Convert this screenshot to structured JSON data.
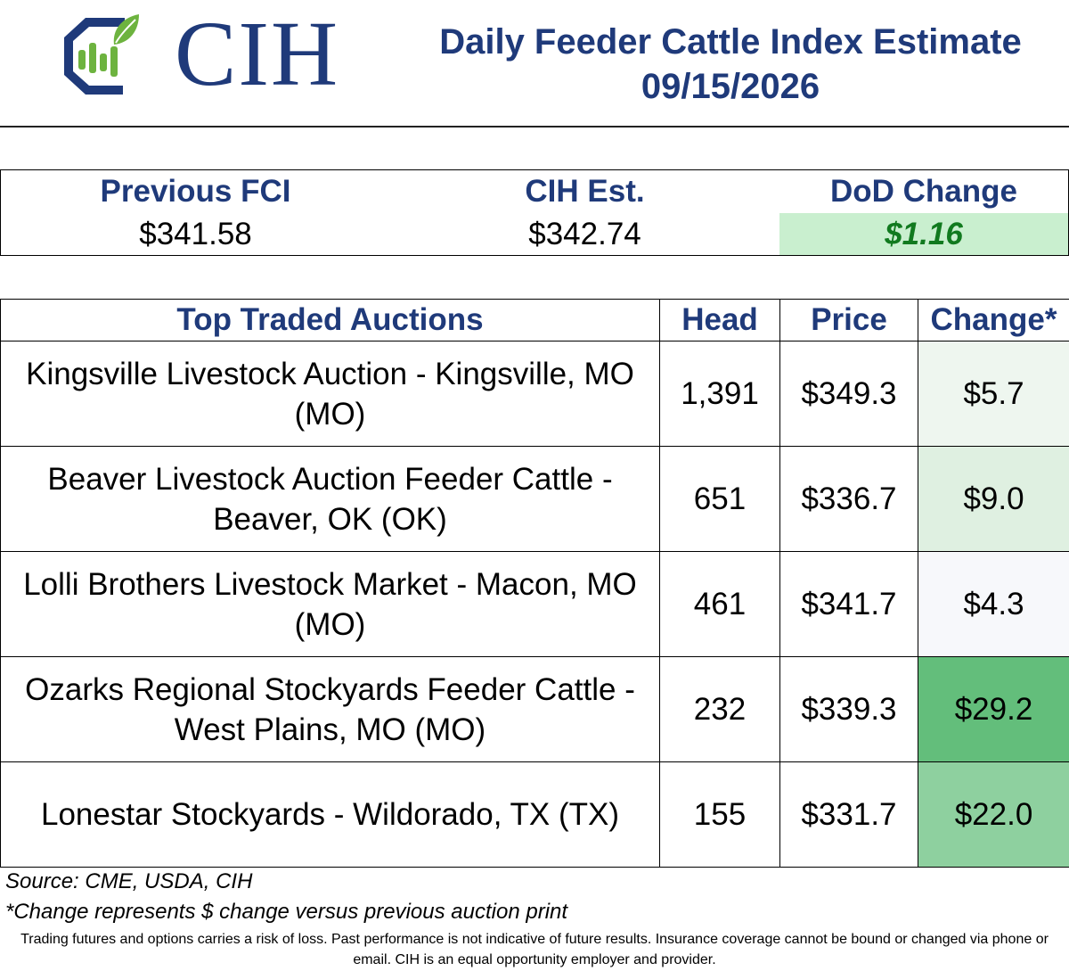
{
  "brand": {
    "logo_text": "CIH",
    "colors": {
      "navy": "#1f3a7a",
      "leaf_green": "#6db33f",
      "dod_bg": "#c9efcf",
      "dod_text": "#117a1f"
    }
  },
  "header": {
    "title": "Daily Feeder Cattle Index Estimate",
    "date": "09/15/2026"
  },
  "summary": {
    "previous_fci_label": "Previous FCI",
    "previous_fci_value": "$341.58",
    "cih_est_label": "CIH Est.",
    "cih_est_value": "$342.74",
    "dod_label": "DoD Change",
    "dod_value": "$1.16"
  },
  "table": {
    "headers": [
      "Top Traded Auctions",
      "Head",
      "Price",
      "Change*"
    ],
    "rows": [
      {
        "auction": "Kingsville Livestock Auction - Kingsville, MO (MO)",
        "head": "1,391",
        "price": "$349.3",
        "change": "$5.7",
        "change_bg": "#eef6ef"
      },
      {
        "auction": "Beaver Livestock Auction Feeder Cattle - Beaver, OK (OK)",
        "head": "651",
        "price": "$336.7",
        "change": "$9.0",
        "change_bg": "#dff0e1"
      },
      {
        "auction": "Lolli Brothers Livestock Market - Macon, MO (MO)",
        "head": "461",
        "price": "$341.7",
        "change": "$4.3",
        "change_bg": "#f7f8fb"
      },
      {
        "auction": "Ozarks Regional Stockyards Feeder Cattle - West Plains, MO (MO)",
        "head": "232",
        "price": "$339.3",
        "change": "$29.2",
        "change_bg": "#63be7b"
      },
      {
        "auction": "Lonestar Stockyards - Wildorado, TX (TX)",
        "head": "155",
        "price": "$331.7",
        "change": "$22.0",
        "change_bg": "#8ed09f"
      }
    ]
  },
  "footer": {
    "source": "Source: CME, USDA, CIH",
    "note": "*Change represents $ change versus previous auction print",
    "disclaimer": "Trading futures and options carries a risk of loss. Past performance is not indicative of future results. Insurance coverage cannot be bound or changed via phone or email. CIH is an equal opportunity employer and provider."
  }
}
